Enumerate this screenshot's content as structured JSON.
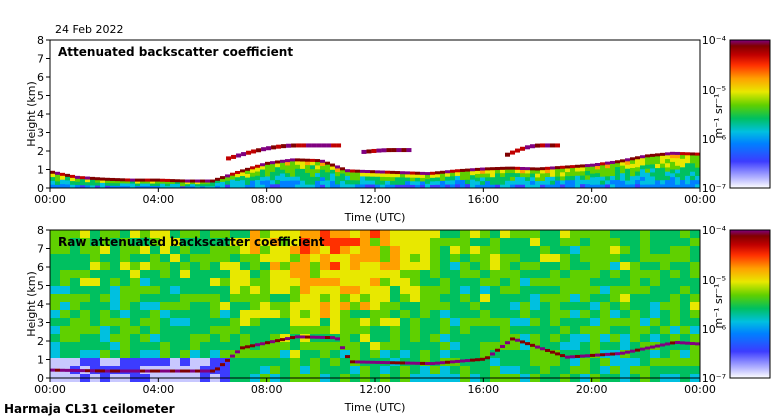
{
  "header": {
    "date": "24 Feb 2022"
  },
  "footer": {
    "instrument": "Harmaja CL31 ceilometer"
  },
  "colors": {
    "scale": [
      "#ffffff",
      "#c8c8ff",
      "#3c3cff",
      "#0080ff",
      "#00c0e0",
      "#00c060",
      "#60d000",
      "#e8e800",
      "#ffa000",
      "#ff3000",
      "#c00000",
      "#800000",
      "#800080"
    ]
  },
  "chart_data": [
    {
      "type": "heatmap",
      "title": "Attenuated backscatter coefficient",
      "xlabel": "Time (UTC)",
      "ylabel": "Height (km)",
      "x_ticks": [
        "00:00",
        "04:00",
        "08:00",
        "12:00",
        "16:00",
        "20:00",
        "00:00"
      ],
      "y_ticks": [
        "0",
        "1",
        "2",
        "3",
        "4",
        "5",
        "6",
        "7",
        "8"
      ],
      "xlim_hours": [
        0,
        24
      ],
      "ylim_km": [
        0,
        8
      ],
      "colorbar": {
        "label": "m⁻¹ sr⁻¹",
        "ticks": [
          "10⁻⁴",
          "10⁻⁵",
          "10⁻⁶",
          "10⁻⁷"
        ],
        "range_log10": [
          -7,
          -4
        ]
      },
      "cloud_layer_km": [
        [
          0,
          0.85
        ],
        [
          1,
          0.55
        ],
        [
          2,
          0.45
        ],
        [
          3,
          0.4
        ],
        [
          4,
          0.4
        ],
        [
          5,
          0.35
        ],
        [
          6,
          0.35
        ],
        [
          7,
          0.85
        ],
        [
          8,
          1.3
        ],
        [
          9,
          1.5
        ],
        [
          10,
          1.45
        ],
        [
          11,
          0.9
        ],
        [
          12,
          0.85
        ],
        [
          13,
          0.8
        ],
        [
          14,
          0.75
        ],
        [
          15,
          0.9
        ],
        [
          16,
          1.0
        ],
        [
          17,
          1.05
        ],
        [
          18,
          1.0
        ],
        [
          19,
          1.1
        ],
        [
          20,
          1.2
        ],
        [
          21,
          1.4
        ],
        [
          22,
          1.7
        ],
        [
          23,
          1.85
        ],
        [
          24,
          1.8
        ]
      ],
      "elevated_layers_km": [
        {
          "start_h": 6.5,
          "end_h": 10.6,
          "base_km": 1.6,
          "top_km": 2.3
        },
        {
          "start_h": 11.5,
          "end_h": 13.2,
          "base_km": 1.95,
          "top_km": 2.05
        },
        {
          "start_h": 16.8,
          "end_h": 18.8,
          "base_km": 1.8,
          "top_km": 2.3
        }
      ]
    },
    {
      "type": "heatmap",
      "title": "Raw attenuated backscatter coefficient",
      "xlabel": "Time (UTC)",
      "ylabel": "Height (km)",
      "x_ticks": [
        "00:00",
        "04:00",
        "08:00",
        "12:00",
        "16:00",
        "20:00",
        "00:00"
      ],
      "y_ticks": [
        "0",
        "1",
        "2",
        "3",
        "4",
        "5",
        "6",
        "7",
        "8"
      ],
      "xlim_hours": [
        0,
        24
      ],
      "ylim_km": [
        0,
        8
      ],
      "colorbar": {
        "label": "m⁻¹ sr⁻¹",
        "ticks": [
          "10⁻⁴",
          "10⁻⁵",
          "10⁻⁶",
          "10⁻⁷"
        ],
        "range_log10": [
          -7,
          -4
        ]
      },
      "noise_peak_hours": [
        8,
        13
      ],
      "cloud_layer_km": [
        [
          0,
          0.4
        ],
        [
          2,
          0.35
        ],
        [
          4,
          0.35
        ],
        [
          6,
          0.35
        ],
        [
          7,
          1.6
        ],
        [
          9,
          2.2
        ],
        [
          10.5,
          2.15
        ],
        [
          11,
          0.85
        ],
        [
          14,
          0.75
        ],
        [
          16,
          1.0
        ],
        [
          17,
          2.1
        ],
        [
          19,
          1.1
        ],
        [
          21,
          1.3
        ],
        [
          23,
          1.9
        ],
        [
          24,
          1.8
        ]
      ]
    }
  ]
}
